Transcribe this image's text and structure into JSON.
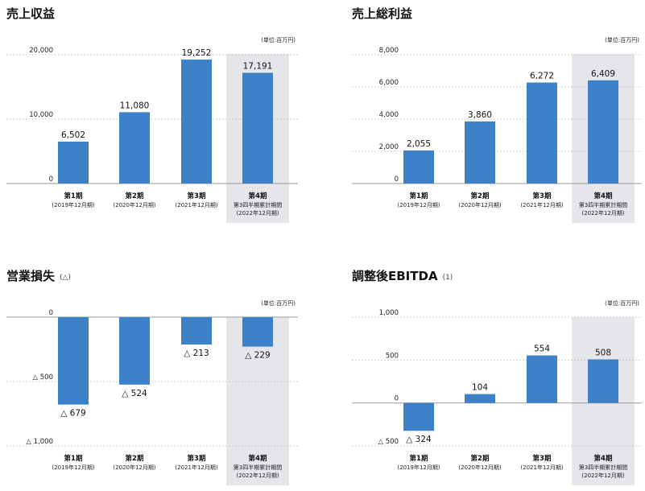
{
  "chart_data": [
    {
      "type": "bar",
      "title": "売上収益",
      "subtitle": "",
      "unit": "(単位:百万円)",
      "ylim": [
        0,
        20000
      ],
      "yticks": [
        0,
        10000,
        20000
      ],
      "ytick_labels": [
        "0",
        "10,000",
        "20,000"
      ],
      "grid": true,
      "highlight_index": 3,
      "categories": [
        {
          "label": "第1期",
          "sub": [
            "(2019年12月期)"
          ]
        },
        {
          "label": "第2期",
          "sub": [
            "(2020年12月期)"
          ]
        },
        {
          "label": "第3期",
          "sub": [
            "(2021年12月期)"
          ]
        },
        {
          "label": "第4期",
          "sub": [
            "第3四半期累計期間",
            "(2022年12月期)"
          ]
        }
      ],
      "values": [
        6502,
        11080,
        19252,
        17191
      ],
      "value_labels": [
        "6,502",
        "11,080",
        "19,252",
        "17,191"
      ]
    },
    {
      "type": "bar",
      "title": "売上総利益",
      "subtitle": "",
      "unit": "(単位:百万円)",
      "ylim": [
        0,
        8000
      ],
      "yticks": [
        0,
        2000,
        4000,
        6000,
        8000
      ],
      "ytick_labels": [
        "0",
        "2,000",
        "4,000",
        "6,000",
        "8,000"
      ],
      "grid": true,
      "highlight_index": 3,
      "categories": [
        {
          "label": "第1期",
          "sub": [
            "(2019年12月期)"
          ]
        },
        {
          "label": "第2期",
          "sub": [
            "(2020年12月期)"
          ]
        },
        {
          "label": "第3期",
          "sub": [
            "(2021年12月期)"
          ]
        },
        {
          "label": "第4期",
          "sub": [
            "第3四半期累計期間",
            "(2022年12月期)"
          ]
        }
      ],
      "values": [
        2055,
        3860,
        6272,
        6409
      ],
      "value_labels": [
        "2,055",
        "3,860",
        "6,272",
        "6,409"
      ]
    },
    {
      "type": "bar",
      "title": "営業損失",
      "subtitle": "(△)",
      "unit": "(単位:百万円)",
      "ylim": [
        -1000,
        0
      ],
      "yticks": [
        0,
        -500,
        -1000
      ],
      "ytick_labels": [
        "0",
        "△ 500",
        "△ 1,000"
      ],
      "grid": true,
      "highlight_index": 3,
      "categories": [
        {
          "label": "第1期",
          "sub": [
            "(2019年12月期)"
          ]
        },
        {
          "label": "第2期",
          "sub": [
            "(2020年12月期)"
          ]
        },
        {
          "label": "第3期",
          "sub": [
            "(2021年12月期)"
          ]
        },
        {
          "label": "第4期",
          "sub": [
            "第3四半期累計期間",
            "(2022年12月期)"
          ]
        }
      ],
      "values": [
        -679,
        -524,
        -213,
        -229
      ],
      "value_labels": [
        "△ 679",
        "△ 524",
        "△ 213",
        "△ 229"
      ]
    },
    {
      "type": "bar",
      "title": "調整後EBITDA",
      "subtitle": "(1)",
      "unit": "(単位:百万円)",
      "ylim": [
        -500,
        1000
      ],
      "yticks": [
        1000,
        500,
        0,
        -500
      ],
      "ytick_labels": [
        "1,000",
        "500",
        "0",
        "△ 500"
      ],
      "grid": true,
      "highlight_index": 3,
      "categories": [
        {
          "label": "第1期",
          "sub": [
            "(2019年12月期)"
          ]
        },
        {
          "label": "第2期",
          "sub": [
            "(2020年12月期)"
          ]
        },
        {
          "label": "第3期",
          "sub": [
            "(2021年12月期)"
          ]
        },
        {
          "label": "第4期",
          "sub": [
            "第3四半期累計期間",
            "(2022年12月期)"
          ]
        }
      ],
      "values": [
        -324,
        104,
        554,
        508
      ],
      "value_labels": [
        "△ 324",
        "104",
        "554",
        "508"
      ]
    }
  ],
  "colors": {
    "bar": "#3d82c8",
    "highlight_band": "#e5e6ea",
    "grid": "#b5b5b5"
  }
}
